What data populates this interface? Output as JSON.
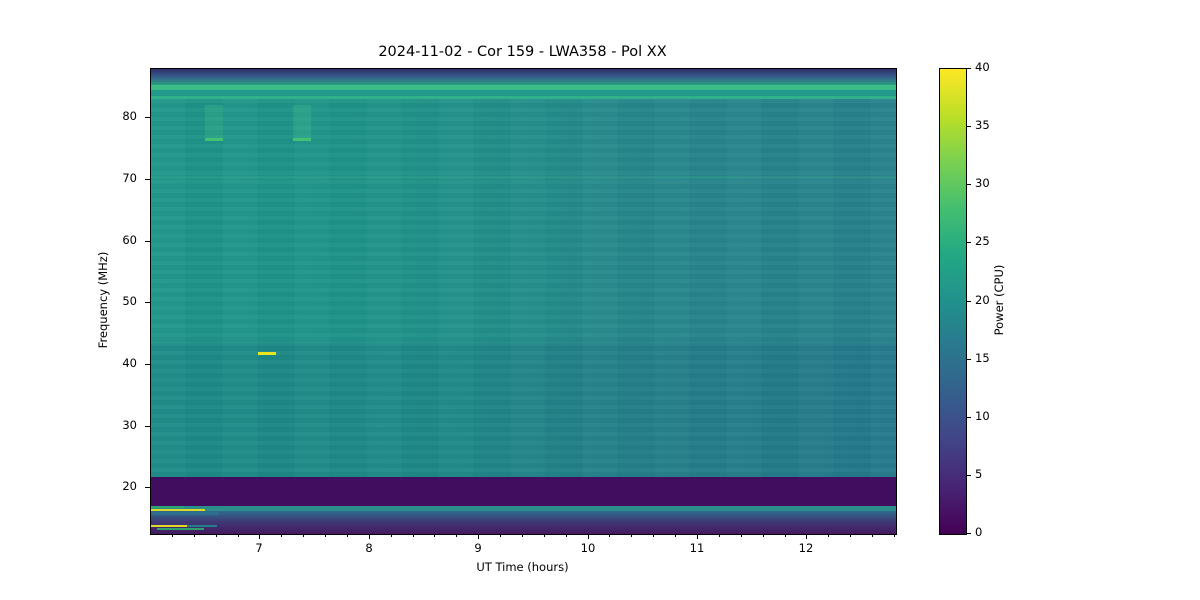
{
  "figure": {
    "background": "#ffffff"
  },
  "chart_data": {
    "type": "heatmap",
    "title": "2024-11-02 - Cor 159 - LWA358 - Pol XX",
    "xlabel": "UT Time (hours)",
    "ylabel": "Frequency (MHz)",
    "colorbar_label": "Power (CPU)",
    "x_range": [
      6.0,
      12.81
    ],
    "y_range": [
      12.6,
      88.0
    ],
    "x_ticks": [
      7,
      8,
      9,
      10,
      11,
      12
    ],
    "x_minor_step": 0.2,
    "y_ticks": [
      20,
      30,
      40,
      50,
      60,
      70,
      80
    ],
    "colorbar_range": [
      0,
      40
    ],
    "colorbar_ticks": [
      0,
      5,
      10,
      15,
      20,
      25,
      30,
      35,
      40
    ],
    "colormap": "viridis",
    "colormap_stops": [
      "#440154",
      "#482475",
      "#414487",
      "#355f8d",
      "#2a788e",
      "#21918c",
      "#22a884",
      "#44bf70",
      "#7ad151",
      "#bddf26",
      "#fde725"
    ],
    "background_body": {
      "direction": "right",
      "colors": [
        "#1f9689",
        "#219589",
        "#27888c",
        "#28828d"
      ],
      "f": [
        83.15,
        21.85
      ],
      "typical_power": 22
    },
    "bands": [
      {
        "name": "top-edge-dark-gradient",
        "f": [
          88.0,
          85.4
        ],
        "direction": "bottom",
        "colors": [
          "#2f2d6b",
          "#355e8c",
          "#27a07f"
        ]
      },
      {
        "name": "bright-line-85mhz",
        "f": [
          85.4,
          84.55
        ],
        "colors": [
          "#3cbd88"
        ]
      },
      {
        "name": "band-84mhz",
        "f": [
          84.55,
          83.6
        ],
        "colors": [
          "#23998b"
        ]
      },
      {
        "name": "light-line-83mhz",
        "f": [
          83.6,
          83.15
        ],
        "colors": [
          "#31b189"
        ]
      },
      {
        "name": "faint-line-70mhz",
        "f": [
          70.6,
          70.15
        ],
        "colors": [
          "rgba(80,200,150,0.20)"
        ]
      },
      {
        "name": "lower-blue-tint",
        "f": [
          43.5,
          21.85
        ],
        "colors": [
          "rgba(20,60,130,0.10)"
        ]
      },
      {
        "name": "suppressed-band-18-22mhz",
        "f": [
          21.85,
          17.13
        ],
        "colors": [
          "#410d5e"
        ]
      },
      {
        "name": "teal-line-17mhz",
        "f": [
          17.13,
          16.3
        ],
        "colors": [
          "#2b8e8c"
        ]
      },
      {
        "name": "bottom-edge-gradient",
        "f": [
          16.3,
          12.6
        ],
        "direction": "bottom",
        "colors": [
          "#2f6b8d",
          "#3f3674",
          "#44185e"
        ]
      }
    ],
    "features": [
      {
        "name": "burst-column-a-76-82mhz",
        "t": [
          6.49,
          6.66
        ],
        "f": [
          82.1,
          76.3
        ],
        "color": "rgba(70,190,135,0.30)"
      },
      {
        "name": "burst-column-b-76-82mhz",
        "t": [
          7.3,
          7.46
        ],
        "f": [
          82.1,
          76.3
        ],
        "color": "rgba(70,190,135,0.30)"
      },
      {
        "name": "burst-dash-a-76mhz",
        "t": [
          6.49,
          6.66
        ],
        "f": [
          76.85,
          76.35
        ],
        "color": "#44c273"
      },
      {
        "name": "burst-dash-b-76mhz",
        "t": [
          7.3,
          7.46
        ],
        "f": [
          76.85,
          76.35
        ],
        "color": "#44c273"
      },
      {
        "name": "yellow-burst-42mhz",
        "t": [
          6.98,
          7.14
        ],
        "f": [
          42.1,
          41.7
        ],
        "color": "#e8e41f"
      },
      {
        "name": "green-segment-17mhz",
        "t": [
          6.0,
          6.3
        ],
        "f": [
          17.1,
          16.8
        ],
        "color": "#2ba46f"
      },
      {
        "name": "yellow-rfi-16.5mhz",
        "t": [
          6.0,
          6.49
        ],
        "f": [
          16.62,
          16.25
        ],
        "color": "#ded926"
      },
      {
        "name": "teal-tail-16.5mhz",
        "t": [
          6.49,
          6.66
        ],
        "f": [
          16.62,
          16.25
        ],
        "color": "#2f8d8b"
      },
      {
        "name": "blue-rows-16mhz",
        "t": [
          6.0,
          6.62
        ],
        "f": [
          16.2,
          15.72
        ],
        "color": "#2d6d8d"
      },
      {
        "name": "yellow-rfi-14mhz",
        "t": [
          6.0,
          6.33
        ],
        "f": [
          14.1,
          13.75
        ],
        "color": "#ded926"
      },
      {
        "name": "teal-tail-14mhz",
        "t": [
          6.33,
          6.6
        ],
        "f": [
          14.1,
          13.75
        ],
        "color": "#22808a"
      },
      {
        "name": "green-rfi-13.4mhz",
        "t": [
          6.05,
          6.48
        ],
        "f": [
          13.6,
          13.28
        ],
        "color": "#2f9f6c"
      }
    ]
  }
}
